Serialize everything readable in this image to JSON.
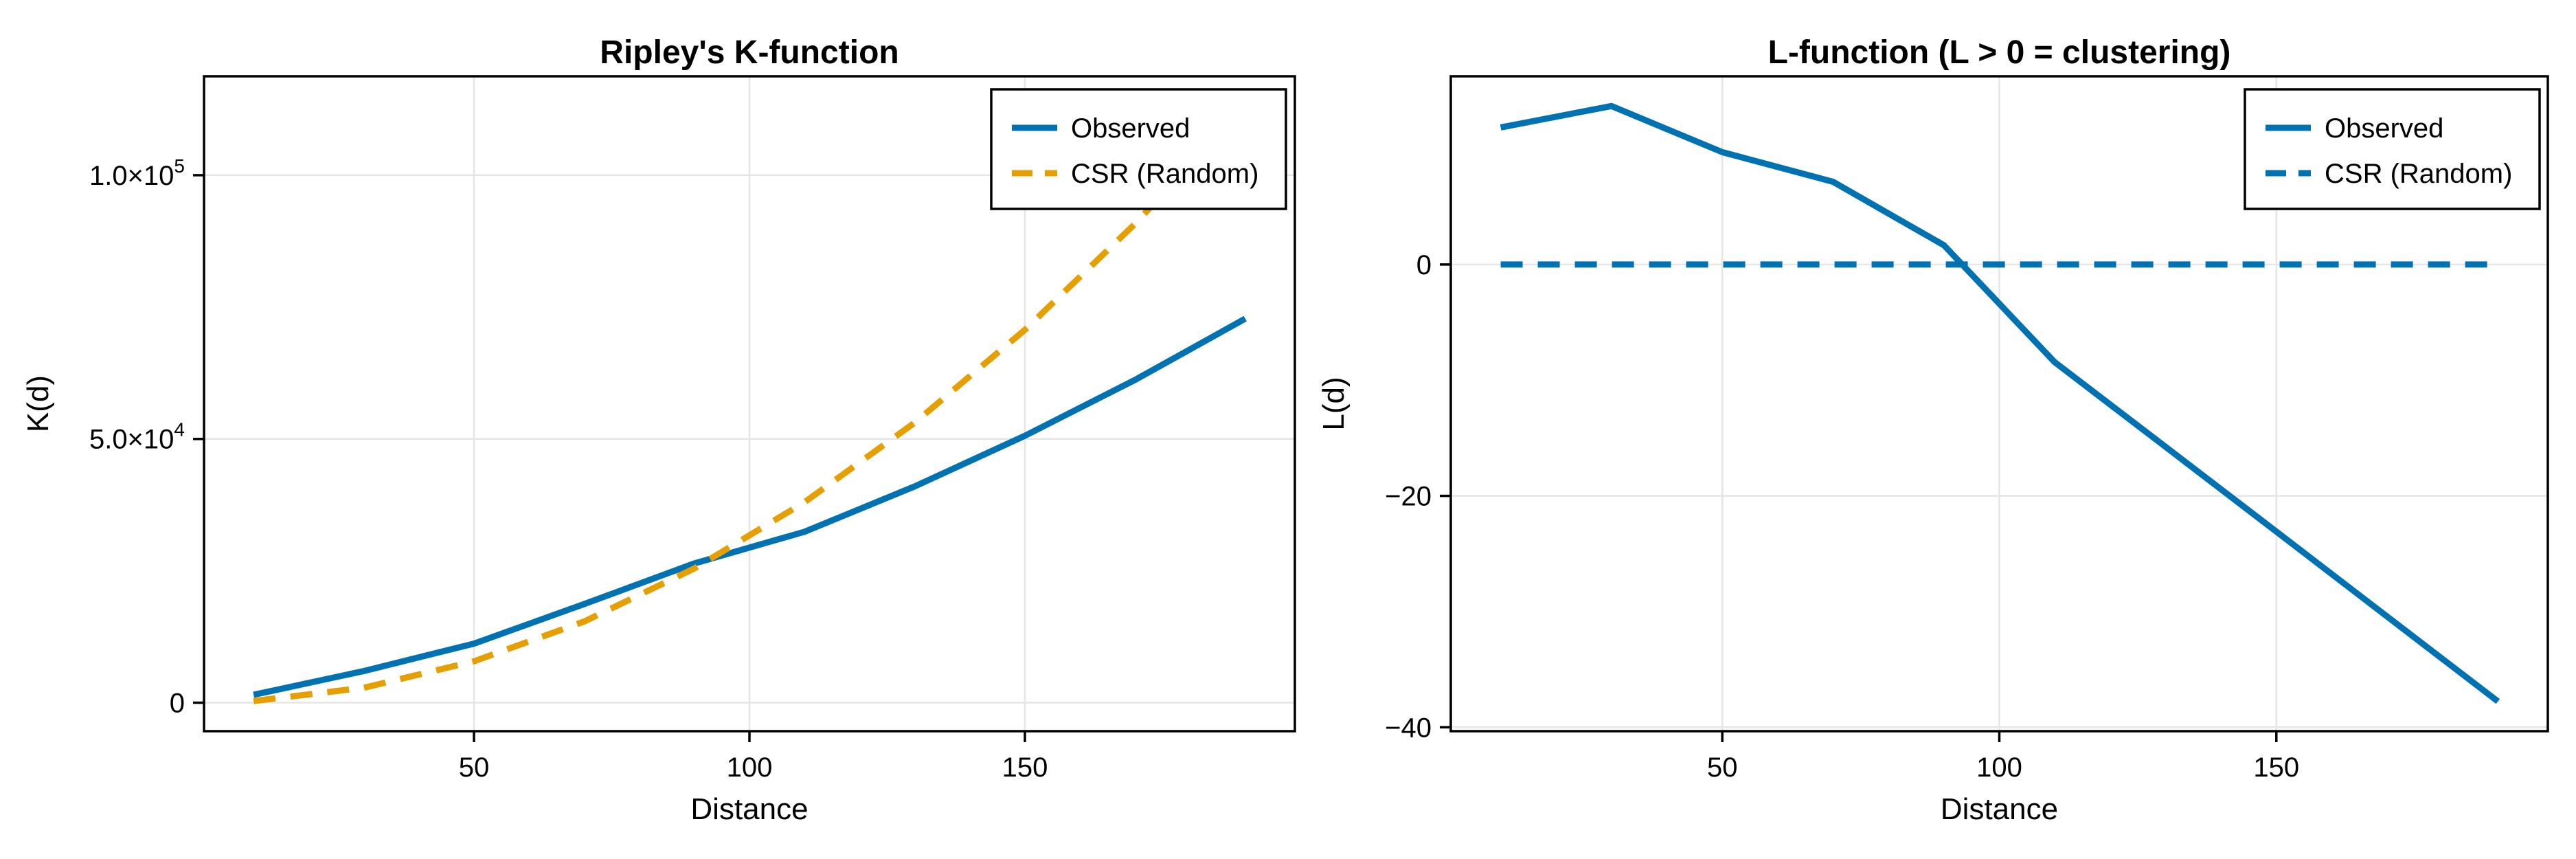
{
  "figure": {
    "background": "#ffffff",
    "accent_blue": "#0072B2",
    "accent_orange": "#E69F00",
    "grid_color": "#e6e6e6",
    "spine_color": "#000000"
  },
  "chart_data": [
    {
      "id": "k-function-chart",
      "type": "line",
      "title": "Ripley's K-function",
      "xlabel": "Distance",
      "ylabel": "K(d)",
      "x": [
        10,
        30,
        50,
        70,
        90,
        110,
        130,
        150,
        170,
        190
      ],
      "series": [
        {
          "name": "Observed",
          "color": "#0072B2",
          "dash": "solid",
          "values": [
            1500,
            6000,
            11200,
            18700,
            26400,
            32400,
            41000,
            50600,
            61200,
            72800
          ]
        },
        {
          "name": "CSR (Random)",
          "color": "#E69F00",
          "dash": "dashed",
          "values": [
            314,
            2827,
            7854,
            15394,
            25447,
            38013,
            53093,
            70686,
            90792,
            113097
          ]
        }
      ],
      "xlim": [
        1,
        199
      ],
      "ylim": [
        -5400,
        118750
      ],
      "xticks": [
        {
          "v": 50,
          "label": "50"
        },
        {
          "v": 100,
          "label": "100"
        },
        {
          "v": 150,
          "label": "150"
        }
      ],
      "yticks": [
        {
          "v": 0,
          "label": "0"
        },
        {
          "v": 50000,
          "label": "5.0×10^4"
        },
        {
          "v": 100000,
          "label": "1.0×10^5"
        }
      ],
      "grid": true,
      "legend_position": "top-right",
      "legend": [
        "Observed",
        "CSR (Random)"
      ]
    },
    {
      "id": "l-function-chart",
      "type": "line",
      "title": "L-function (L > 0 = clustering)",
      "xlabel": "Distance",
      "ylabel": "L(d)",
      "x": [
        10,
        30,
        50,
        70,
        90,
        110,
        130,
        150,
        170,
        190
      ],
      "series": [
        {
          "name": "Observed",
          "color": "#0072B2",
          "dash": "solid",
          "values": [
            11.85,
            13.7,
            9.71,
            7.15,
            1.67,
            -8.45,
            -15.76,
            -23.09,
            -30.43,
            -37.77
          ]
        },
        {
          "name": "CSR (Random)",
          "color": "#0072B2",
          "dash": "dashed",
          "values": [
            0,
            0,
            0,
            0,
            0,
            0,
            0,
            0,
            0,
            0
          ]
        }
      ],
      "xlim": [
        1,
        199
      ],
      "ylim": [
        -40.34,
        16.27
      ],
      "xticks": [
        {
          "v": 50,
          "label": "50"
        },
        {
          "v": 100,
          "label": "100"
        },
        {
          "v": 150,
          "label": "150"
        }
      ],
      "yticks": [
        {
          "v": 0,
          "label": "0"
        },
        {
          "v": -20,
          "label": "−20"
        },
        {
          "v": -40,
          "label": "−40"
        }
      ],
      "grid": true,
      "legend_position": "top-right",
      "legend": [
        "Observed",
        "CSR (Random)"
      ]
    }
  ]
}
